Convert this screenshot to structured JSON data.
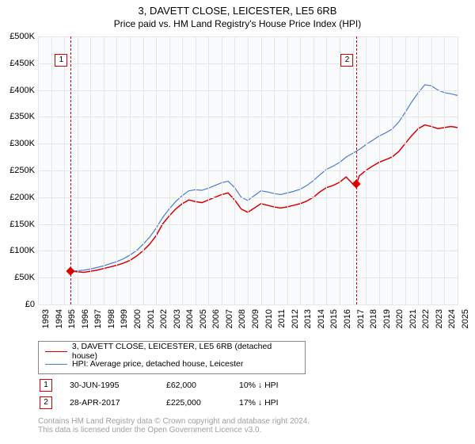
{
  "title": "3, DAVETT CLOSE, LEICESTER, LE5 6RB",
  "subtitle": "Price paid vs. HM Land Registry's House Price Index (HPI)",
  "chart": {
    "type": "line",
    "background_color": "#f9fbfd",
    "grid_color": "#e6e6e6",
    "axis_color": "#888888",
    "xlim": [
      1993,
      2025
    ],
    "ylim": [
      0,
      500000
    ],
    "ytick_step": 50000,
    "y_labels": [
      "£0",
      "£50K",
      "£100K",
      "£150K",
      "£200K",
      "£250K",
      "£300K",
      "£350K",
      "£400K",
      "£450K",
      "£500K"
    ],
    "x_labels": [
      "1993",
      "1994",
      "1995",
      "1996",
      "1997",
      "1998",
      "1999",
      "2000",
      "2001",
      "2002",
      "2003",
      "2004",
      "2005",
      "2006",
      "2007",
      "2008",
      "2009",
      "2010",
      "2011",
      "2012",
      "2013",
      "2014",
      "2015",
      "2016",
      "2017",
      "2018",
      "2019",
      "2020",
      "2021",
      "2022",
      "2023",
      "2024",
      "2025"
    ],
    "label_fontsize": 11,
    "series": [
      {
        "name": "red",
        "color": "#dc0000",
        "width": 1.5,
        "points": [
          [
            1995.5,
            62000
          ],
          [
            1996,
            61000
          ],
          [
            1996.5,
            60000
          ],
          [
            1997,
            62000
          ],
          [
            1997.5,
            64000
          ],
          [
            1998,
            67000
          ],
          [
            1998.5,
            70000
          ],
          [
            1999,
            73000
          ],
          [
            1999.5,
            77000
          ],
          [
            2000,
            82000
          ],
          [
            2000.5,
            90000
          ],
          [
            2001,
            100000
          ],
          [
            2001.5,
            112000
          ],
          [
            2002,
            128000
          ],
          [
            2002.5,
            150000
          ],
          [
            2003,
            165000
          ],
          [
            2003.5,
            178000
          ],
          [
            2004,
            188000
          ],
          [
            2004.5,
            195000
          ],
          [
            2005,
            192000
          ],
          [
            2005.5,
            190000
          ],
          [
            2006,
            195000
          ],
          [
            2006.5,
            200000
          ],
          [
            2007,
            205000
          ],
          [
            2007.5,
            208000
          ],
          [
            2008,
            195000
          ],
          [
            2008.5,
            178000
          ],
          [
            2009,
            172000
          ],
          [
            2009.5,
            180000
          ],
          [
            2010,
            188000
          ],
          [
            2010.5,
            185000
          ],
          [
            2011,
            182000
          ],
          [
            2011.5,
            180000
          ],
          [
            2012,
            182000
          ],
          [
            2012.5,
            185000
          ],
          [
            2013,
            188000
          ],
          [
            2013.5,
            193000
          ],
          [
            2014,
            200000
          ],
          [
            2014.5,
            210000
          ],
          [
            2015,
            218000
          ],
          [
            2015.5,
            222000
          ],
          [
            2016,
            228000
          ],
          [
            2016.5,
            238000
          ],
          [
            2017,
            225000
          ],
          [
            2017.3,
            225000
          ],
          [
            2017.5,
            240000
          ],
          [
            2018,
            250000
          ],
          [
            2018.5,
            258000
          ],
          [
            2019,
            265000
          ],
          [
            2019.5,
            270000
          ],
          [
            2020,
            275000
          ],
          [
            2020.5,
            285000
          ],
          [
            2021,
            300000
          ],
          [
            2021.5,
            315000
          ],
          [
            2022,
            328000
          ],
          [
            2022.5,
            335000
          ],
          [
            2023,
            332000
          ],
          [
            2023.5,
            328000
          ],
          [
            2024,
            330000
          ],
          [
            2024.5,
            332000
          ],
          [
            2025,
            330000
          ]
        ]
      },
      {
        "name": "blue",
        "color": "#4a7dd4",
        "width": 1.2,
        "points": [
          [
            1995.5,
            62000
          ],
          [
            1996,
            63000
          ],
          [
            1996.5,
            64000
          ],
          [
            1997,
            66000
          ],
          [
            1997.5,
            69000
          ],
          [
            1998,
            72000
          ],
          [
            1998.5,
            76000
          ],
          [
            1999,
            80000
          ],
          [
            1999.5,
            85000
          ],
          [
            2000,
            92000
          ],
          [
            2000.5,
            100000
          ],
          [
            2001,
            112000
          ],
          [
            2001.5,
            125000
          ],
          [
            2002,
            142000
          ],
          [
            2002.5,
            162000
          ],
          [
            2003,
            178000
          ],
          [
            2003.5,
            192000
          ],
          [
            2004,
            203000
          ],
          [
            2004.5,
            212000
          ],
          [
            2005,
            214000
          ],
          [
            2005.5,
            213000
          ],
          [
            2006,
            217000
          ],
          [
            2006.5,
            222000
          ],
          [
            2007,
            227000
          ],
          [
            2007.5,
            230000
          ],
          [
            2008,
            218000
          ],
          [
            2008.5,
            200000
          ],
          [
            2009,
            194000
          ],
          [
            2009.5,
            203000
          ],
          [
            2010,
            212000
          ],
          [
            2010.5,
            210000
          ],
          [
            2011,
            207000
          ],
          [
            2011.5,
            205000
          ],
          [
            2012,
            208000
          ],
          [
            2012.5,
            211000
          ],
          [
            2013,
            215000
          ],
          [
            2013.5,
            222000
          ],
          [
            2014,
            231000
          ],
          [
            2014.5,
            242000
          ],
          [
            2015,
            252000
          ],
          [
            2015.5,
            258000
          ],
          [
            2016,
            265000
          ],
          [
            2016.5,
            275000
          ],
          [
            2017,
            282000
          ],
          [
            2017.5,
            289000
          ],
          [
            2018,
            298000
          ],
          [
            2018.5,
            306000
          ],
          [
            2019,
            314000
          ],
          [
            2019.5,
            320000
          ],
          [
            2020,
            327000
          ],
          [
            2020.5,
            340000
          ],
          [
            2021,
            358000
          ],
          [
            2021.5,
            378000
          ],
          [
            2022,
            395000
          ],
          [
            2022.5,
            410000
          ],
          [
            2023,
            408000
          ],
          [
            2023.5,
            400000
          ],
          [
            2024,
            395000
          ],
          [
            2024.5,
            393000
          ],
          [
            2025,
            390000
          ]
        ]
      }
    ],
    "markers": [
      {
        "n": "1",
        "x": 1995.5,
        "y": 62000,
        "color": "#dc0000"
      },
      {
        "n": "2",
        "x": 2017.3,
        "y": 225000,
        "color": "#dc0000"
      }
    ]
  },
  "legend": {
    "series1_color": "#dc0000",
    "series1_label": "3, DAVETT CLOSE, LEICESTER, LE5 6RB (detached house)",
    "series2_color": "#4a7dd4",
    "series2_label": "HPI: Average price, detached house, Leicester"
  },
  "sales": [
    {
      "n": "1",
      "color": "#dc0000",
      "date": "30-JUN-1995",
      "price": "£62,000",
      "pct": "10% ↓ HPI"
    },
    {
      "n": "2",
      "color": "#dc0000",
      "date": "28-APR-2017",
      "price": "£225,000",
      "pct": "17% ↓ HPI"
    }
  ],
  "footnote_line1": "Contains HM Land Registry data © Crown copyright and database right 2024.",
  "footnote_line2": "This data is licensed under the Open Government Licence v3.0."
}
